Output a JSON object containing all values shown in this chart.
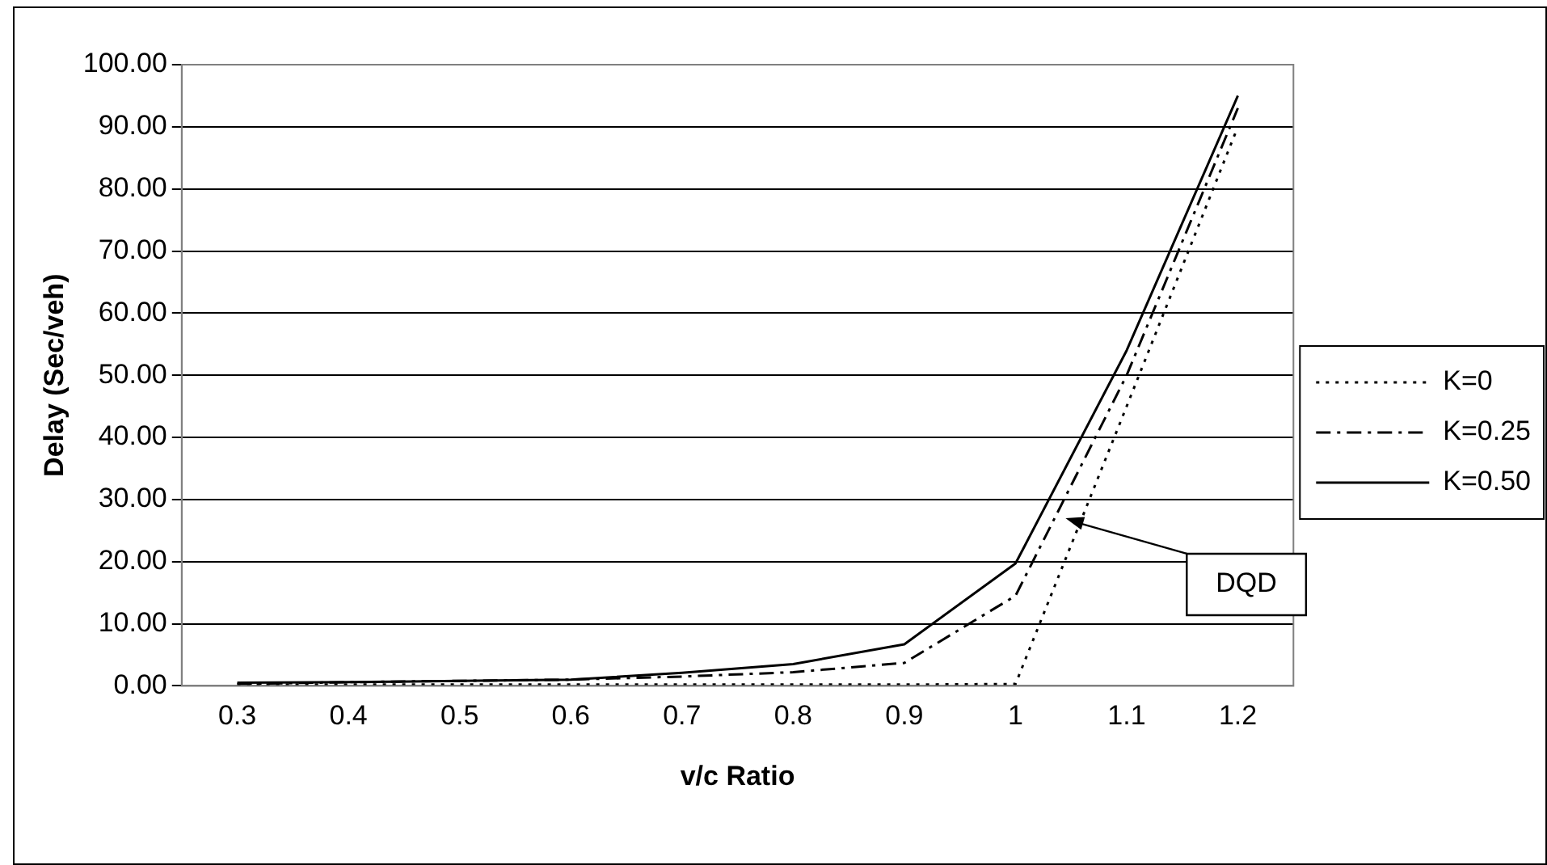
{
  "chart_data": {
    "type": "line",
    "xlabel": "v/c Ratio",
    "ylabel": "Delay (Sec/veh)",
    "categories": [
      "0.3",
      "0.4",
      "0.5",
      "0.6",
      "0.7",
      "0.8",
      "0.9",
      "1",
      "1.1",
      "1.2"
    ],
    "series": [
      {
        "name": "K=0",
        "color": "#000000",
        "line_style": "dotted",
        "values": [
          0.2,
          0.2,
          0.2,
          0.2,
          0.2,
          0.2,
          0.2,
          0.3,
          45,
          90
        ]
      },
      {
        "name": "K=0.25",
        "color": "#000000",
        "line_style": "dashed",
        "values": [
          0.3,
          0.6,
          0.8,
          1.0,
          1.5,
          2.2,
          3.7,
          14.5,
          50,
          93
        ]
      },
      {
        "name": "K=0.50",
        "color": "#000000",
        "line_style": "solid",
        "values": [
          0.5,
          0.6,
          0.8,
          1.0,
          2.1,
          3.5,
          6.7,
          19.7,
          54,
          95
        ]
      }
    ],
    "ylim": [
      0,
      100
    ],
    "yticks": [
      {
        "value": 0,
        "label": "0.00"
      },
      {
        "value": 10,
        "label": "10.00"
      },
      {
        "value": 20,
        "label": "20.00"
      },
      {
        "value": 30,
        "label": "30.00"
      },
      {
        "value": 40,
        "label": "40.00"
      },
      {
        "value": 50,
        "label": "50.00"
      },
      {
        "value": 60,
        "label": "60.00"
      },
      {
        "value": 70,
        "label": "70.00"
      },
      {
        "value": 80,
        "label": "80.00"
      },
      {
        "value": 90,
        "label": "90.00"
      },
      {
        "value": 100,
        "label": "100.00"
      }
    ],
    "grid": "y",
    "legend": "right",
    "marker": "none",
    "annotations": [
      "DQD"
    ]
  }
}
